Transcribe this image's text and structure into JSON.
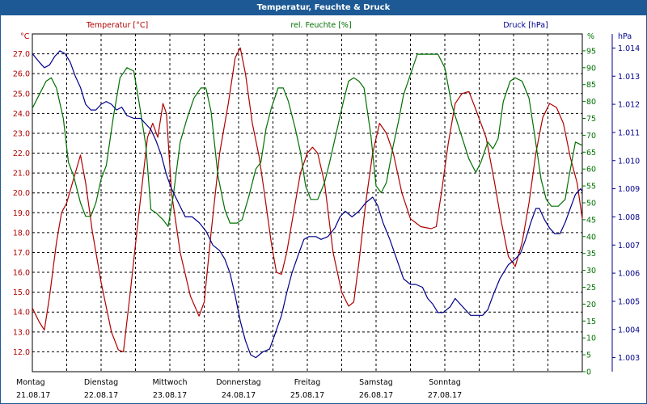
{
  "window": {
    "title": "Temperatur, Feuchte & Druck"
  },
  "colors": {
    "temperature": "#b00000",
    "humidity": "#007000",
    "pressure": "#00008b",
    "title_bar": "#1d5a95"
  },
  "chart_data": {
    "type": "line",
    "title": "Temperatur, Feuchte & Druck",
    "grid": true,
    "x_ticks": [
      {
        "day": "Montag",
        "date": "21.08.17"
      },
      {
        "day": "Dienstag",
        "date": "22.08.17"
      },
      {
        "day": "Mittwoch",
        "date": "23.08.17"
      },
      {
        "day": "Donnerstag",
        "date": "24.08.17"
      },
      {
        "day": "Freitag",
        "date": "25.08.17"
      },
      {
        "day": "Samstag",
        "date": "26.08.17"
      },
      {
        "day": "Sonntag",
        "date": "27.08.17"
      }
    ],
    "axes": {
      "temperature": {
        "label": "Temperatur [°C]",
        "unit": "°C",
        "range": [
          11.0,
          28.0
        ],
        "ticks": [
          "12.0",
          "13.0",
          "14.0",
          "15.0",
          "16.0",
          "17.0",
          "18.0",
          "19.0",
          "20.0",
          "21.0",
          "22.0",
          "23.0",
          "24.0",
          "25.0",
          "26.0",
          "27.0"
        ]
      },
      "humidity": {
        "label": "rel. Feuchte [%]",
        "unit": "%",
        "range": [
          0,
          100
        ],
        "ticks": [
          "0",
          "5",
          "10",
          "15",
          "20",
          "25",
          "30",
          "35",
          "40",
          "45",
          "50",
          "55",
          "60",
          "65",
          "70",
          "75",
          "80",
          "85",
          "90",
          "95"
        ]
      },
      "pressure": {
        "label": "Druck [hPa]",
        "unit": "hPa",
        "range": [
          1002.5,
          1014.5
        ],
        "ticks": [
          "1.003",
          "1.004",
          "1.005",
          "1.006",
          "1.007",
          "1.008",
          "1.009",
          "1.010",
          "1.011",
          "1.012",
          "1.013",
          "1.014"
        ]
      }
    },
    "series": [
      {
        "name": "Temperatur [°C]",
        "axis": "temperature",
        "color": "#b00000",
        "points": [
          [
            0.0,
            14.2
          ],
          [
            0.2,
            13.5
          ],
          [
            0.35,
            13.1
          ],
          [
            0.5,
            14.8
          ],
          [
            0.7,
            17.5
          ],
          [
            0.85,
            19.0
          ],
          [
            1.0,
            19.5
          ],
          [
            1.25,
            21.0
          ],
          [
            1.4,
            21.9
          ],
          [
            1.55,
            20.5
          ],
          [
            1.75,
            18.0
          ],
          [
            2.0,
            15.5
          ],
          [
            2.3,
            13.0
          ],
          [
            2.5,
            12.1
          ],
          [
            2.65,
            12.0
          ],
          [
            2.85,
            15.0
          ],
          [
            3.1,
            19.0
          ],
          [
            3.35,
            22.8
          ],
          [
            3.5,
            23.5
          ],
          [
            3.65,
            22.8
          ],
          [
            3.8,
            24.5
          ],
          [
            3.9,
            24.0
          ],
          [
            4.05,
            20.0
          ],
          [
            4.3,
            17.0
          ],
          [
            4.6,
            14.8
          ],
          [
            4.85,
            13.8
          ],
          [
            5.0,
            14.5
          ],
          [
            5.2,
            18.0
          ],
          [
            5.45,
            22.0
          ],
          [
            5.7,
            24.5
          ],
          [
            5.9,
            26.8
          ],
          [
            6.05,
            27.3
          ],
          [
            6.2,
            26.0
          ],
          [
            6.4,
            23.5
          ],
          [
            6.6,
            21.8
          ],
          [
            6.75,
            20.0
          ],
          [
            6.95,
            17.5
          ],
          [
            7.1,
            16.0
          ],
          [
            7.25,
            15.9
          ],
          [
            7.4,
            17.0
          ],
          [
            7.6,
            19.0
          ],
          [
            7.8,
            21.0
          ],
          [
            8.0,
            22.0
          ],
          [
            8.15,
            22.3
          ],
          [
            8.3,
            22.0
          ],
          [
            8.5,
            20.5
          ],
          [
            8.75,
            17.0
          ],
          [
            9.0,
            15.0
          ],
          [
            9.2,
            14.3
          ],
          [
            9.35,
            14.5
          ],
          [
            9.5,
            16.5
          ],
          [
            9.7,
            19.5
          ],
          [
            9.9,
            22.0
          ],
          [
            10.1,
            23.5
          ],
          [
            10.3,
            23.0
          ],
          [
            10.5,
            22.0
          ],
          [
            10.75,
            20.0
          ],
          [
            11.0,
            18.7
          ],
          [
            11.3,
            18.3
          ],
          [
            11.6,
            18.2
          ],
          [
            11.75,
            18.3
          ],
          [
            11.9,
            20.0
          ],
          [
            12.1,
            22.5
          ],
          [
            12.3,
            24.5
          ],
          [
            12.5,
            25.0
          ],
          [
            12.7,
            25.1
          ],
          [
            12.9,
            24.2
          ],
          [
            13.2,
            22.8
          ],
          [
            13.45,
            20.5
          ],
          [
            13.65,
            18.5
          ],
          [
            13.85,
            16.8
          ],
          [
            14.05,
            16.3
          ],
          [
            14.25,
            17.5
          ],
          [
            14.45,
            19.5
          ],
          [
            14.65,
            22.0
          ],
          [
            14.85,
            23.8
          ],
          [
            15.05,
            24.5
          ],
          [
            15.25,
            24.3
          ],
          [
            15.45,
            23.5
          ],
          [
            15.65,
            21.8
          ],
          [
            15.85,
            20.5
          ],
          [
            16.0,
            18.7
          ]
        ]
      },
      {
        "name": "rel. Feuchte [%]",
        "axis": "humidity",
        "color": "#007000",
        "points": [
          [
            0.0,
            78
          ],
          [
            0.2,
            82
          ],
          [
            0.4,
            86
          ],
          [
            0.55,
            87
          ],
          [
            0.7,
            84
          ],
          [
            0.9,
            75
          ],
          [
            1.05,
            62
          ],
          [
            1.2,
            58
          ],
          [
            1.4,
            50
          ],
          [
            1.55,
            46
          ],
          [
            1.7,
            46
          ],
          [
            1.85,
            50
          ],
          [
            2.0,
            57
          ],
          [
            2.15,
            61
          ],
          [
            2.35,
            75
          ],
          [
            2.55,
            87
          ],
          [
            2.75,
            90
          ],
          [
            2.95,
            89
          ],
          [
            3.1,
            80
          ],
          [
            3.3,
            67
          ],
          [
            3.45,
            48
          ],
          [
            3.6,
            47
          ],
          [
            3.8,
            45
          ],
          [
            3.95,
            43
          ],
          [
            4.1,
            52
          ],
          [
            4.3,
            68
          ],
          [
            4.5,
            75
          ],
          [
            4.7,
            81
          ],
          [
            4.9,
            84
          ],
          [
            5.05,
            84
          ],
          [
            5.2,
            77
          ],
          [
            5.4,
            58
          ],
          [
            5.6,
            48
          ],
          [
            5.75,
            44
          ],
          [
            5.95,
            44
          ],
          [
            6.1,
            45
          ],
          [
            6.3,
            52
          ],
          [
            6.5,
            60
          ],
          [
            6.65,
            62
          ],
          [
            6.8,
            72
          ],
          [
            6.95,
            78
          ],
          [
            7.15,
            84
          ],
          [
            7.3,
            84
          ],
          [
            7.45,
            80
          ],
          [
            7.65,
            72
          ],
          [
            7.8,
            65
          ],
          [
            7.95,
            55
          ],
          [
            8.1,
            51
          ],
          [
            8.3,
            51
          ],
          [
            8.5,
            56
          ],
          [
            8.65,
            62
          ],
          [
            8.85,
            71
          ],
          [
            9.05,
            80
          ],
          [
            9.2,
            86
          ],
          [
            9.35,
            87
          ],
          [
            9.5,
            86
          ],
          [
            9.65,
            84
          ],
          [
            9.85,
            70
          ],
          [
            10.0,
            55
          ],
          [
            10.15,
            53
          ],
          [
            10.3,
            56
          ],
          [
            10.5,
            67
          ],
          [
            10.65,
            74
          ],
          [
            10.8,
            82
          ],
          [
            11.0,
            88
          ],
          [
            11.2,
            94
          ],
          [
            11.4,
            94
          ],
          [
            11.6,
            94
          ],
          [
            11.8,
            94
          ],
          [
            12.0,
            90
          ],
          [
            12.2,
            79
          ],
          [
            12.45,
            71
          ],
          [
            12.7,
            63
          ],
          [
            12.9,
            59
          ],
          [
            13.05,
            62
          ],
          [
            13.25,
            68
          ],
          [
            13.4,
            66
          ],
          [
            13.55,
            69
          ],
          [
            13.7,
            80
          ],
          [
            13.9,
            86
          ],
          [
            14.05,
            87
          ],
          [
            14.25,
            86
          ],
          [
            14.45,
            81
          ],
          [
            14.6,
            71
          ],
          [
            14.8,
            57
          ],
          [
            14.95,
            51
          ],
          [
            15.1,
            49
          ],
          [
            15.3,
            49
          ],
          [
            15.5,
            51
          ],
          [
            15.6,
            57
          ],
          [
            15.8,
            68
          ],
          [
            16.0,
            67
          ]
        ]
      },
      {
        "name": "Druck [hPa]",
        "axis": "pressure",
        "color": "#00008b",
        "points": [
          [
            0.0,
            1013.8
          ],
          [
            0.2,
            1013.5
          ],
          [
            0.35,
            1013.3
          ],
          [
            0.5,
            1013.4
          ],
          [
            0.65,
            1013.7
          ],
          [
            0.8,
            1013.9
          ],
          [
            0.95,
            1013.8
          ],
          [
            1.1,
            1013.5
          ],
          [
            1.25,
            1013.0
          ],
          [
            1.4,
            1012.6
          ],
          [
            1.55,
            1012.0
          ],
          [
            1.7,
            1011.8
          ],
          [
            1.85,
            1011.8
          ],
          [
            2.0,
            1012.0
          ],
          [
            2.15,
            1012.1
          ],
          [
            2.3,
            1012.0
          ],
          [
            2.45,
            1011.8
          ],
          [
            2.6,
            1011.9
          ],
          [
            2.75,
            1011.6
          ],
          [
            2.95,
            1011.5
          ],
          [
            3.15,
            1011.5
          ],
          [
            3.3,
            1011.3
          ],
          [
            3.45,
            1011.1
          ],
          [
            3.6,
            1010.7
          ],
          [
            3.75,
            1010.2
          ],
          [
            3.9,
            1009.5
          ],
          [
            4.05,
            1009.0
          ],
          [
            4.25,
            1008.5
          ],
          [
            4.45,
            1008.0
          ],
          [
            4.65,
            1008.0
          ],
          [
            4.85,
            1007.8
          ],
          [
            5.05,
            1007.5
          ],
          [
            5.25,
            1007.0
          ],
          [
            5.45,
            1006.8
          ],
          [
            5.6,
            1006.5
          ],
          [
            5.75,
            1006.0
          ],
          [
            5.9,
            1005.2
          ],
          [
            6.05,
            1004.3
          ],
          [
            6.2,
            1003.6
          ],
          [
            6.35,
            1003.1
          ],
          [
            6.5,
            1003.0
          ],
          [
            6.7,
            1003.2
          ],
          [
            6.9,
            1003.3
          ],
          [
            7.05,
            1003.8
          ],
          [
            7.25,
            1004.5
          ],
          [
            7.4,
            1005.3
          ],
          [
            7.55,
            1006.0
          ],
          [
            7.75,
            1006.7
          ],
          [
            7.9,
            1007.2
          ],
          [
            8.05,
            1007.3
          ],
          [
            8.25,
            1007.3
          ],
          [
            8.4,
            1007.2
          ],
          [
            8.6,
            1007.3
          ],
          [
            8.8,
            1007.6
          ],
          [
            8.95,
            1008.0
          ],
          [
            9.1,
            1008.2
          ],
          [
            9.3,
            1008.0
          ],
          [
            9.5,
            1008.2
          ],
          [
            9.7,
            1008.5
          ],
          [
            9.9,
            1008.7
          ],
          [
            10.05,
            1008.4
          ],
          [
            10.2,
            1007.8
          ],
          [
            10.4,
            1007.2
          ],
          [
            10.6,
            1006.5
          ],
          [
            10.8,
            1005.8
          ],
          [
            11.0,
            1005.6
          ],
          [
            11.15,
            1005.6
          ],
          [
            11.35,
            1005.5
          ],
          [
            11.5,
            1005.1
          ],
          [
            11.65,
            1004.9
          ],
          [
            11.8,
            1004.6
          ],
          [
            11.95,
            1004.6
          ],
          [
            12.15,
            1004.8
          ],
          [
            12.3,
            1005.1
          ],
          [
            12.45,
            1004.9
          ],
          [
            12.6,
            1004.7
          ],
          [
            12.75,
            1004.5
          ],
          [
            12.9,
            1004.5
          ],
          [
            13.1,
            1004.5
          ],
          [
            13.25,
            1004.7
          ],
          [
            13.4,
            1005.2
          ],
          [
            13.6,
            1005.8
          ],
          [
            13.85,
            1006.3
          ],
          [
            14.05,
            1006.5
          ],
          [
            14.2,
            1006.7
          ],
          [
            14.35,
            1007.2
          ],
          [
            14.5,
            1007.8
          ],
          [
            14.65,
            1008.3
          ],
          [
            14.75,
            1008.3
          ],
          [
            14.9,
            1007.9
          ],
          [
            15.05,
            1007.6
          ],
          [
            15.2,
            1007.4
          ],
          [
            15.35,
            1007.4
          ],
          [
            15.5,
            1007.8
          ],
          [
            15.65,
            1008.3
          ],
          [
            15.8,
            1008.8
          ],
          [
            15.95,
            1009.0
          ],
          [
            16.0,
            1008.9
          ]
        ]
      }
    ]
  }
}
